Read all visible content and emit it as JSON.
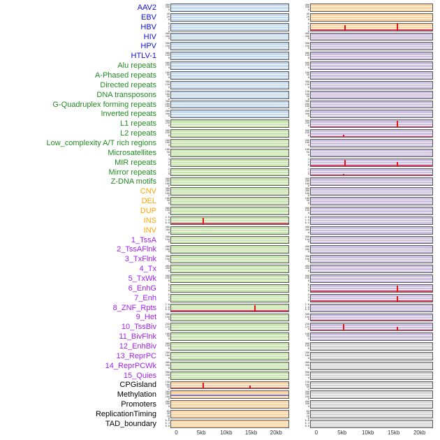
{
  "palette": {
    "label_colors": {
      "virus": "#0f0fd6",
      "repeat": "#228B22",
      "sv": "#FFA500",
      "chromatin": "#A020F0",
      "other": "#000000"
    },
    "panel_colors": {
      "blue": "#C6DBEF",
      "green": "#C9E5B0",
      "orange": "#FDD5A5",
      "purple": "#CCC1E3",
      "gray": "#D6D6D6"
    },
    "spike_color": "#EE1111",
    "line_color": "#D9486B",
    "hline_color": "#8C6BB1"
  },
  "chart_data": {
    "type": "line",
    "description": "Multi-track genomic feature density profiles around sites, two sample columns, 0-20kb windows; red peaks mark enriched positions",
    "x_axis": {
      "ticks": [
        {
          "label": "0",
          "kb": 0
        },
        {
          "label": "5kb",
          "kb": 5
        },
        {
          "label": "10kb",
          "kb": 10
        },
        {
          "label": "15kb",
          "kb": 15
        },
        {
          "label": "20kb",
          "kb": 20
        }
      ],
      "range_kb": [
        0,
        20
      ]
    },
    "tracks": [
      {
        "label": "AAV2",
        "group": "virus",
        "lbg": "blue",
        "rbg": "orange",
        "yt": [
          "400",
          "200",
          "0"
        ]
      },
      {
        "label": "EBV",
        "group": "virus",
        "lbg": "blue",
        "rbg": "orange",
        "yt": [
          "40",
          "20",
          "0"
        ]
      },
      {
        "label": "HBV",
        "group": "virus",
        "lbg": "blue",
        "rbg": "orange",
        "yt": [
          "6",
          "4",
          "2",
          "0"
        ],
        "rpeaks": [
          {
            "kb": 5.5,
            "h": 0.8
          },
          {
            "kb": 15.8,
            "h": 0.95
          }
        ],
        "rline": true
      },
      {
        "label": "HIV",
        "group": "virus",
        "lbg": "blue",
        "rbg": "purple",
        "yt": [
          "400",
          "200",
          "0"
        ]
      },
      {
        "label": "HPV",
        "group": "virus",
        "lbg": "blue",
        "rbg": "purple",
        "yt": [
          "500",
          "250",
          "0"
        ]
      },
      {
        "label": "HTLV-1",
        "group": "virus",
        "lbg": "blue",
        "rbg": "purple",
        "yt": [
          "300",
          "150",
          "0"
        ]
      },
      {
        "label": "Alu repeats",
        "group": "repeat",
        "lbg": "blue",
        "rbg": "purple",
        "yt": [
          "500",
          "250",
          "0"
        ]
      },
      {
        "label": "A-Phased repeats",
        "group": "repeat",
        "lbg": "blue",
        "rbg": "purple",
        "yt": [
          "100",
          "50",
          "0"
        ]
      },
      {
        "label": "Directed repeats",
        "group": "repeat",
        "lbg": "blue",
        "rbg": "purple",
        "yt": [
          "300",
          "150",
          "0"
        ]
      },
      {
        "label": "DNA transposons",
        "group": "repeat",
        "lbg": "blue",
        "rbg": "purple",
        "yt": [
          "150",
          "100",
          "50",
          "0"
        ]
      },
      {
        "label": "G-Quadruplex forming repeats",
        "group": "repeat",
        "lbg": "blue",
        "rbg": "purple",
        "yt": [
          "300",
          "200",
          "100",
          "0"
        ]
      },
      {
        "label": "Inverted repeats",
        "group": "repeat",
        "lbg": "blue",
        "rbg": "purple",
        "yt": [
          "400",
          "200",
          "0"
        ]
      },
      {
        "label": "L1 repeats",
        "group": "repeat",
        "lbg": "green",
        "rbg": "purple",
        "yt": [
          "500",
          "250",
          "0"
        ],
        "rpeaks": [
          {
            "kb": 15.8,
            "h": 0.9
          }
        ],
        "rline": true
      },
      {
        "label": "L2 repeats",
        "group": "repeat",
        "lbg": "green",
        "rbg": "purple",
        "yt": [
          "300",
          "150",
          "0"
        ],
        "rpeaks": [
          {
            "kb": 5.2,
            "h": 0.3
          }
        ],
        "rline": true
      },
      {
        "label": "Low_complexity A/T rich regions",
        "group": "repeat",
        "lbg": "green",
        "rbg": "purple",
        "yt": [
          "200",
          "100",
          "0"
        ]
      },
      {
        "label": "Microsatellites",
        "group": "repeat",
        "lbg": "green",
        "rbg": "purple",
        "yt": [
          "100",
          "50",
          "0"
        ]
      },
      {
        "label": "MIR repeats",
        "group": "repeat",
        "lbg": "green",
        "rbg": "purple",
        "yt": [
          "4",
          "2",
          "0"
        ],
        "rpeaks": [
          {
            "kb": 5.5,
            "h": 0.9
          },
          {
            "kb": 15.8,
            "h": 0.55
          }
        ],
        "rline": true
      },
      {
        "label": "Mirror repeats",
        "group": "repeat",
        "lbg": "green",
        "rbg": "purple",
        "yt": [
          "2",
          "1",
          "0"
        ],
        "rpeaks": [
          {
            "kb": 5.3,
            "h": 0.25
          }
        ],
        "rline": true
      },
      {
        "label": "Z-DNA motifs",
        "group": "repeat",
        "lbg": "green",
        "rbg": "purple",
        "yt": [
          "300",
          "200",
          "100",
          "0"
        ]
      },
      {
        "label": "CNV",
        "group": "sv",
        "lbg": "green",
        "rbg": "purple",
        "yt": [
          "300",
          "200",
          "100",
          "0"
        ]
      },
      {
        "label": "DEL",
        "group": "sv",
        "lbg": "green",
        "rbg": "purple",
        "yt": [
          "100",
          "50",
          "0"
        ]
      },
      {
        "label": "DUP",
        "group": "sv",
        "lbg": "green",
        "rbg": "purple",
        "yt": [
          "300",
          "150",
          "0"
        ]
      },
      {
        "label": "INS",
        "group": "sv",
        "lbg": "green",
        "rbg": "purple",
        "yt": [
          "2.0",
          "1.0",
          "0.0"
        ],
        "lpeaks": [
          {
            "kb": 5.3,
            "h": 0.85
          }
        ],
        "lline": true
      },
      {
        "label": "INV",
        "group": "sv",
        "lbg": "green",
        "rbg": "purple",
        "yt": [
          "400",
          "200",
          "0"
        ]
      },
      {
        "label": "1_TssA",
        "group": "chromatin",
        "lbg": "green",
        "rbg": "purple",
        "yt": [
          "300",
          "150",
          "0"
        ]
      },
      {
        "label": "2_TssAFlnk",
        "group": "chromatin",
        "lbg": "green",
        "rbg": "purple",
        "yt": [
          "400",
          "200",
          "0"
        ]
      },
      {
        "label": "3_TxFlnk",
        "group": "chromatin",
        "lbg": "green",
        "rbg": "purple",
        "yt": [
          "300",
          "150",
          "0"
        ]
      },
      {
        "label": "4_Tx",
        "group": "chromatin",
        "lbg": "green",
        "rbg": "purple",
        "yt": [
          "400",
          "200",
          "0"
        ]
      },
      {
        "label": "5_TxWk",
        "group": "chromatin",
        "lbg": "green",
        "rbg": "purple",
        "yt": [
          "300",
          "150",
          "0"
        ]
      },
      {
        "label": "6_EnhG",
        "group": "chromatin",
        "lbg": "green",
        "rbg": "purple",
        "yt": [
          "6",
          "3",
          "0"
        ],
        "rpeaks": [
          {
            "kb": 15.8,
            "h": 0.9
          }
        ],
        "rline": true
      },
      {
        "label": "7_Enh",
        "group": "chromatin",
        "lbg": "green",
        "rbg": "purple",
        "yt": [
          "6",
          "3",
          "0"
        ],
        "rpeaks": [
          {
            "kb": 15.8,
            "h": 0.8
          }
        ],
        "rline": true
      },
      {
        "label": "8_ZNF_Rpts",
        "group": "chromatin",
        "lbg": "green",
        "rbg": "purple",
        "yt": [
          "2.0",
          "1.0",
          "0.0"
        ],
        "lpeaks": [
          {
            "kb": 15.8,
            "h": 0.85
          }
        ],
        "lline": true
      },
      {
        "label": "9_Het",
        "group": "chromatin",
        "lbg": "green",
        "rbg": "purple",
        "yt": [
          "300",
          "150",
          "0"
        ],
        "rline": true
      },
      {
        "label": "10_TssBiv",
        "group": "chromatin",
        "lbg": "green",
        "rbg": "purple",
        "yt": [
          "250",
          "125",
          "0"
        ],
        "rpeaks": [
          {
            "kb": 5.3,
            "h": 0.9
          },
          {
            "kb": 15.8,
            "h": 0.5
          }
        ],
        "rline": true
      },
      {
        "label": "11_BivFlnk",
        "group": "chromatin",
        "lbg": "green",
        "rbg": "purple",
        "yt": [
          "100",
          "50",
          "0"
        ]
      },
      {
        "label": "12_EnhBiv",
        "group": "chromatin",
        "lbg": "green",
        "rbg": "gray",
        "yt": [
          "300",
          "150",
          "0"
        ]
      },
      {
        "label": "13_ReprPC",
        "group": "chromatin",
        "lbg": "green",
        "rbg": "gray",
        "yt": [
          "200",
          "100",
          "0"
        ]
      },
      {
        "label": "14_ReprPCWk",
        "group": "chromatin",
        "lbg": "green",
        "rbg": "gray",
        "yt": [
          "400",
          "200",
          "0"
        ]
      },
      {
        "label": "15_Quies",
        "group": "chromatin",
        "lbg": "green",
        "rbg": "gray",
        "yt": [
          "500",
          "250",
          "0"
        ]
      },
      {
        "label": "CPGisland",
        "group": "other",
        "lbg": "orange",
        "rbg": "gray",
        "yt": [
          "150",
          "100",
          "50",
          "0"
        ],
        "lpeaks": [
          {
            "kb": 5.3,
            "h": 0.9
          },
          {
            "kb": 14.8,
            "h": 0.45
          }
        ],
        "lline": true
      },
      {
        "label": "Methylation",
        "group": "other",
        "lbg": "orange",
        "rbg": "gray",
        "yt": [
          "300",
          "200",
          "100",
          "0"
        ],
        "lhline": 0.5
      },
      {
        "label": "Promoters",
        "group": "other",
        "lbg": "orange",
        "rbg": "gray",
        "yt": [
          "400",
          "200",
          "0"
        ]
      },
      {
        "label": "ReplicationTiming",
        "group": "other",
        "lbg": "orange",
        "rbg": "gray",
        "yt": [
          "60",
          "40",
          "20",
          "0"
        ]
      },
      {
        "label": "TAD_boundary",
        "group": "other",
        "lbg": "orange",
        "rbg": "gray",
        "yt": [
          "0.8",
          "0.4",
          "0.0"
        ]
      }
    ]
  }
}
